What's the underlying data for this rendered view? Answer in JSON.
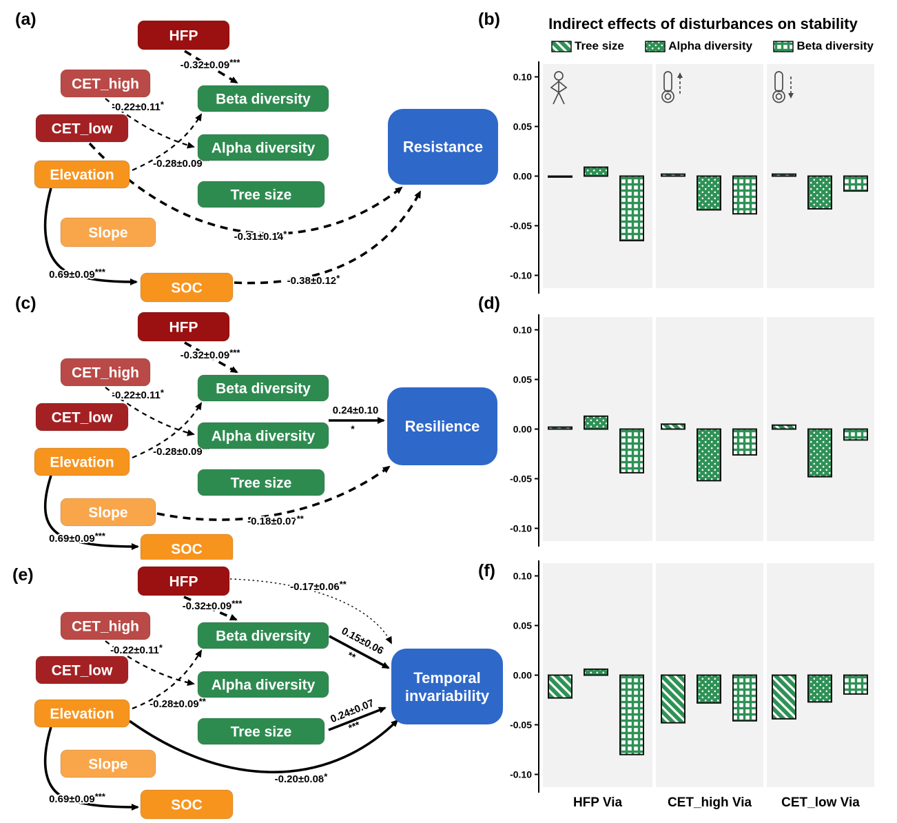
{
  "sem": {
    "outcome_color": "#2E68C9",
    "nodes": [
      {
        "id": "HFP",
        "label": "HFP",
        "color": "#9B1010"
      },
      {
        "id": "CET_high",
        "label": "CET_high",
        "color": "#B94A47"
      },
      {
        "id": "CET_low",
        "label": "CET_low",
        "color": "#A42123"
      },
      {
        "id": "Elevation",
        "label": "Elevation",
        "color": "#F7941E"
      },
      {
        "id": "Slope",
        "label": "Slope",
        "color": "#F9A64B"
      },
      {
        "id": "SOC",
        "label": "SOC",
        "color": "#F7941E"
      },
      {
        "id": "Beta",
        "label": "Beta diversity",
        "color": "#2E8B50"
      },
      {
        "id": "Alpha",
        "label": "Alpha diversity",
        "color": "#2E8B50"
      },
      {
        "id": "Tree",
        "label": "Tree size",
        "color": "#2E8B50"
      }
    ],
    "panels": [
      {
        "id": "a",
        "label": "(a)",
        "outcome": "Resistance",
        "outcome_lines": [
          "Resistance"
        ],
        "edges": [
          {
            "from": "HFP",
            "to": "Beta",
            "label": "-0.32±0.09***",
            "style": "dashed",
            "weight": "thick"
          },
          {
            "from": "CET_high",
            "to": "Alpha",
            "label": "-0.22±0.11*",
            "style": "dashed",
            "weight": "thin"
          },
          {
            "from": "Elevation",
            "to": "Beta",
            "label": "-0.28±0.09**",
            "style": "dashed",
            "weight": "thin"
          },
          {
            "from": "CET_low",
            "to": "OUT",
            "label": "-0.31±0.14*",
            "style": "dashed",
            "weight": "thick"
          },
          {
            "from": "SOC",
            "to": "OUT",
            "label": "-0.38±0.12*",
            "style": "dashed",
            "weight": "thick"
          },
          {
            "from": "Elevation",
            "to": "SOC",
            "label": "0.69±0.09***",
            "style": "solid",
            "weight": "thick"
          }
        ]
      },
      {
        "id": "c",
        "label": "(c)",
        "outcome": "Resilience",
        "outcome_lines": [
          "Resilience"
        ],
        "edges": [
          {
            "from": "HFP",
            "to": "Beta",
            "label": "-0.32±0.09***",
            "style": "dashed",
            "weight": "thick"
          },
          {
            "from": "CET_high",
            "to": "Alpha",
            "label": "-0.22±0.11*",
            "style": "dashed",
            "weight": "thin"
          },
          {
            "from": "Elevation",
            "to": "Beta",
            "label": "-0.28±0.09**",
            "style": "dashed",
            "weight": "thin"
          },
          {
            "from": "Alpha",
            "to": "OUT",
            "label": "0.24±0.10",
            "sub": "*",
            "style": "solid",
            "weight": "thick"
          },
          {
            "from": "Slope",
            "to": "OUT",
            "label": "-0.18±0.07**",
            "style": "dashed",
            "weight": "thick"
          },
          {
            "from": "Elevation",
            "to": "SOC",
            "label": "0.69±0.09***",
            "style": "solid",
            "weight": "thick"
          }
        ]
      },
      {
        "id": "e",
        "label": "(e)",
        "outcome": "Temporal invariability",
        "outcome_lines": [
          "Temporal",
          "invariability"
        ],
        "edges": [
          {
            "from": "HFP",
            "to": "OUT",
            "label": "-0.17±0.06**",
            "style": "dotted",
            "weight": "hairline"
          },
          {
            "from": "HFP",
            "to": "Beta",
            "label": "-0.32±0.09***",
            "style": "dashed",
            "weight": "thick"
          },
          {
            "from": "CET_high",
            "to": "Alpha",
            "label": "-0.22±0.11*",
            "style": "dashed",
            "weight": "thin"
          },
          {
            "from": "Elevation",
            "to": "Beta",
            "label": "-0.28±0.09**",
            "style": "dashed",
            "weight": "thin"
          },
          {
            "from": "Beta",
            "to": "OUT",
            "label": "0.15±0.06",
            "sub": "**",
            "style": "solid",
            "weight": "thick"
          },
          {
            "from": "Tree",
            "to": "OUT",
            "label": "0.24±0.07",
            "sub": "***",
            "style": "solid",
            "weight": "thick"
          },
          {
            "from": "Elevation",
            "to": "OUT",
            "label": "-0.20±0.08*",
            "style": "solid",
            "weight": "thick"
          },
          {
            "from": "Elevation",
            "to": "SOC",
            "label": "0.69±0.09***",
            "style": "solid",
            "weight": "thick"
          }
        ]
      }
    ]
  },
  "chart_data": [
    {
      "panel_label": "(b)",
      "type": "bar",
      "outcome": "Resistance",
      "title": "Indirect effects of disturbances on stability",
      "legend": [
        "Tree size",
        "Alpha diversity",
        "Beta diversity"
      ],
      "facets": [
        "HFP",
        "CET_high",
        "CET_low"
      ],
      "facet_icons": [
        "human",
        "thermometer-up",
        "thermometer-down"
      ],
      "series": [
        {
          "name": "Tree size",
          "values": [
            -0.001,
            0.002,
            0.002
          ]
        },
        {
          "name": "Alpha diversity",
          "values": [
            0.009,
            -0.034,
            -0.033
          ]
        },
        {
          "name": "Beta diversity",
          "values": [
            -0.065,
            -0.038,
            -0.015
          ]
        }
      ],
      "ylim": [
        -0.1,
        0.1
      ],
      "yticks": [
        0.1,
        0.05,
        0.0,
        -0.05,
        -0.1
      ],
      "bar_color": "#2E9155",
      "facet_bg": "#F2F2F2"
    },
    {
      "panel_label": "(d)",
      "type": "bar",
      "outcome": "Resilience",
      "facets": [
        "HFP",
        "CET_high",
        "CET_low"
      ],
      "series": [
        {
          "name": "Tree size",
          "values": [
            0.002,
            0.005,
            0.004
          ]
        },
        {
          "name": "Alpha diversity",
          "values": [
            0.013,
            -0.052,
            -0.048
          ]
        },
        {
          "name": "Beta diversity",
          "values": [
            -0.044,
            -0.026,
            -0.011
          ]
        }
      ],
      "ylim": [
        -0.1,
        0.1
      ],
      "yticks": [
        0.1,
        0.05,
        0.0,
        -0.05,
        -0.1
      ],
      "bar_color": "#2E9155",
      "facet_bg": "#F2F2F2"
    },
    {
      "panel_label": "(f)",
      "type": "bar",
      "outcome": "Temporal invariability",
      "facets": [
        "HFP",
        "CET_high",
        "CET_low"
      ],
      "facet_labels": [
        "HFP Via",
        "CET_high Via",
        "CET_low Via"
      ],
      "series": [
        {
          "name": "Tree size",
          "values": [
            -0.023,
            -0.048,
            -0.044
          ]
        },
        {
          "name": "Alpha diversity",
          "values": [
            0.006,
            -0.028,
            -0.027
          ]
        },
        {
          "name": "Beta diversity",
          "values": [
            -0.08,
            -0.046,
            -0.019
          ]
        }
      ],
      "ylim": [
        -0.1,
        0.1
      ],
      "yticks": [
        0.1,
        0.05,
        0.0,
        -0.05,
        -0.1
      ],
      "bar_color": "#2E9155",
      "facet_bg": "#F2F2F2"
    }
  ]
}
